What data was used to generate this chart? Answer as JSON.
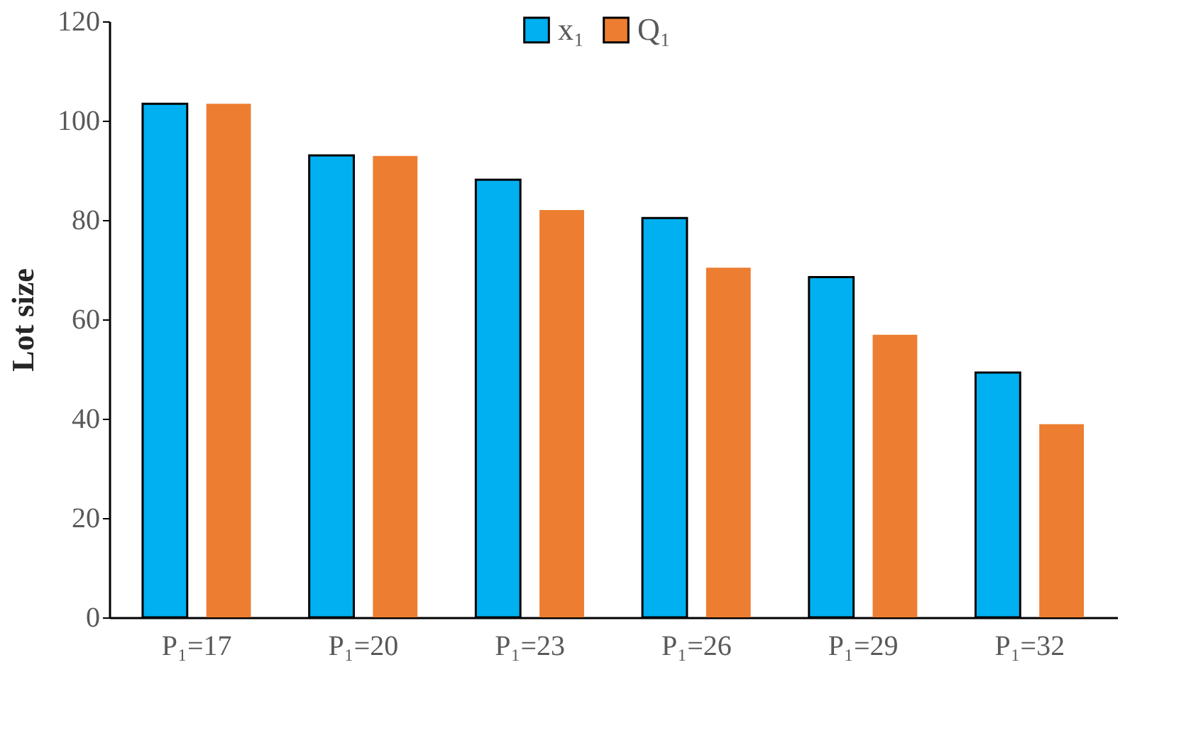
{
  "chart_data": {
    "type": "bar",
    "ylabel": "Lot size",
    "categories": [
      "P₁=17",
      "P₁=20",
      "P₁=23",
      "P₁=26",
      "P₁=29",
      "P₁=32"
    ],
    "series": [
      {
        "name": "x₁",
        "color": "#00b0f0",
        "values": [
          103.4,
          93.0,
          88.1,
          80.4,
          68.5,
          49.3
        ]
      },
      {
        "name": "Q₁",
        "color": "#ed7d31",
        "values": [
          103.4,
          92.9,
          82.0,
          70.4,
          56.9,
          38.9
        ]
      }
    ],
    "ylim": [
      0,
      120
    ],
    "yticks": [
      0,
      20,
      40,
      60,
      80,
      100,
      120
    ],
    "grid": false,
    "legend": "top"
  }
}
